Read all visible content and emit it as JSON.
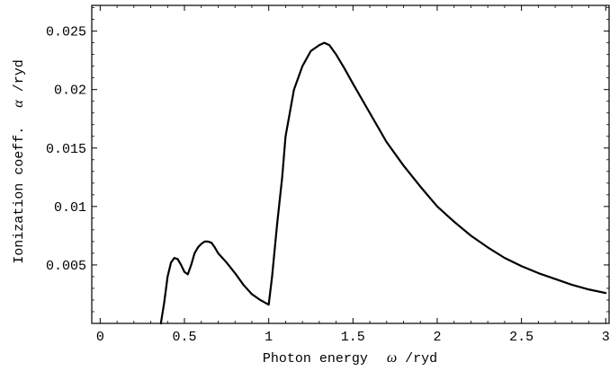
{
  "chart_data": {
    "type": "line",
    "xlabel_prefix": "Photon energy",
    "xlabel_symbol": "ω",
    "xlabel_suffix": "/ryd",
    "ylabel_prefix": "Ionization coeff.",
    "ylabel_symbol": "α",
    "ylabel_suffix": "/ryd",
    "xlim": [
      -0.05,
      3.02
    ],
    "ylim": [
      0,
      0.0272
    ],
    "x_ticks": [
      0,
      0.5,
      1,
      1.5,
      2,
      2.5,
      3
    ],
    "x_tick_labels": [
      "0",
      "0.5",
      "1",
      "1.5",
      "2",
      "2.5",
      "3"
    ],
    "y_ticks": [
      0.005,
      0.01,
      0.015,
      0.02,
      0.025
    ],
    "y_tick_labels": [
      "0.005",
      "0.01",
      "0.015",
      "0.02",
      "0.025"
    ],
    "grid": false,
    "line_color": "#000000",
    "series": [
      {
        "x": [
          0.36,
          0.38,
          0.4,
          0.42,
          0.44,
          0.46,
          0.48,
          0.5,
          0.52,
          0.54,
          0.56,
          0.58,
          0.6,
          0.62,
          0.64,
          0.66,
          0.68,
          0.7,
          0.75,
          0.8,
          0.85,
          0.9,
          0.95,
          1.0,
          1.02,
          1.05,
          1.08,
          1.1,
          1.15,
          1.2,
          1.25,
          1.3,
          1.33,
          1.36,
          1.4,
          1.45,
          1.5,
          1.6,
          1.7,
          1.8,
          1.9,
          2.0,
          2.1,
          2.2,
          2.3,
          2.4,
          2.5,
          2.6,
          2.7,
          2.8,
          2.9,
          3.0
        ],
        "y": [
          0.0,
          0.0018,
          0.004,
          0.0052,
          0.0056,
          0.0055,
          0.005,
          0.0044,
          0.0042,
          0.005,
          0.006,
          0.0065,
          0.0068,
          0.007,
          0.007,
          0.0069,
          0.0065,
          0.006,
          0.0052,
          0.0043,
          0.0033,
          0.0025,
          0.002,
          0.0016,
          0.004,
          0.0085,
          0.0125,
          0.016,
          0.02,
          0.022,
          0.0233,
          0.0238,
          0.024,
          0.0238,
          0.023,
          0.0218,
          0.0205,
          0.018,
          0.0155,
          0.0135,
          0.0117,
          0.01,
          0.0087,
          0.0075,
          0.0065,
          0.0056,
          0.0049,
          0.0043,
          0.0038,
          0.0033,
          0.0029,
          0.0026
        ]
      }
    ]
  }
}
